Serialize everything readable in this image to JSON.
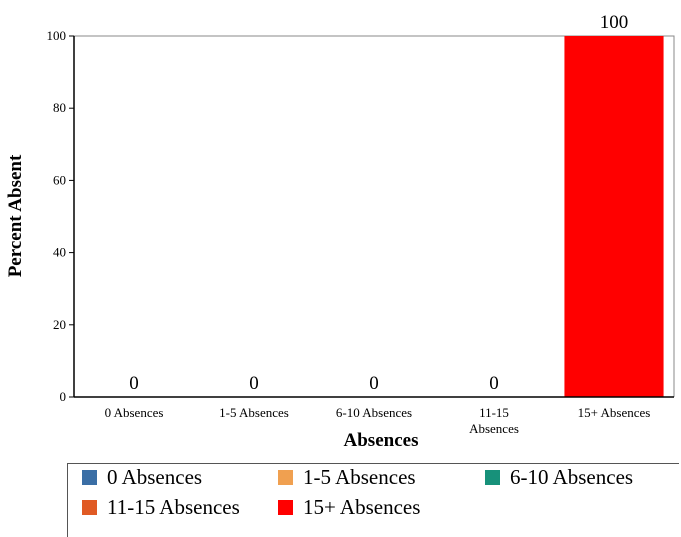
{
  "chart_data": {
    "type": "bar",
    "title": "",
    "xlabel": "Absences",
    "ylabel": "Percent Absent",
    "categories": [
      "0 Absences",
      "1-5 Absences",
      "6-10 Absences",
      "11-15 Absences",
      "15+ Absences"
    ],
    "category_tick_lines": [
      [
        "0 Absences"
      ],
      [
        "1-5 Absences"
      ],
      [
        "6-10 Absences"
      ],
      [
        "11-15",
        "Absences"
      ],
      [
        "15+ Absences"
      ]
    ],
    "values": [
      0,
      0,
      0,
      0,
      100
    ],
    "data_labels": [
      "0",
      "0",
      "0",
      "0",
      "100"
    ],
    "colors": [
      "#3a6ea5",
      "#f0a050",
      "#17917a",
      "#e05a24",
      "#ff0000"
    ],
    "ylim": [
      0,
      100
    ],
    "yticks": [
      0,
      20,
      40,
      60,
      80,
      100
    ],
    "grid": false,
    "legend_position": "bottom"
  },
  "legend": {
    "items": [
      {
        "label": "0 Absences",
        "color": "#3a6ea5"
      },
      {
        "label": "1-5 Absences",
        "color": "#f0a050"
      },
      {
        "label": "6-10 Absences",
        "color": "#17917a"
      },
      {
        "label": "11-15 Absences",
        "color": "#e05a24"
      },
      {
        "label": "15+ Absences",
        "color": "#ff0000"
      }
    ]
  }
}
